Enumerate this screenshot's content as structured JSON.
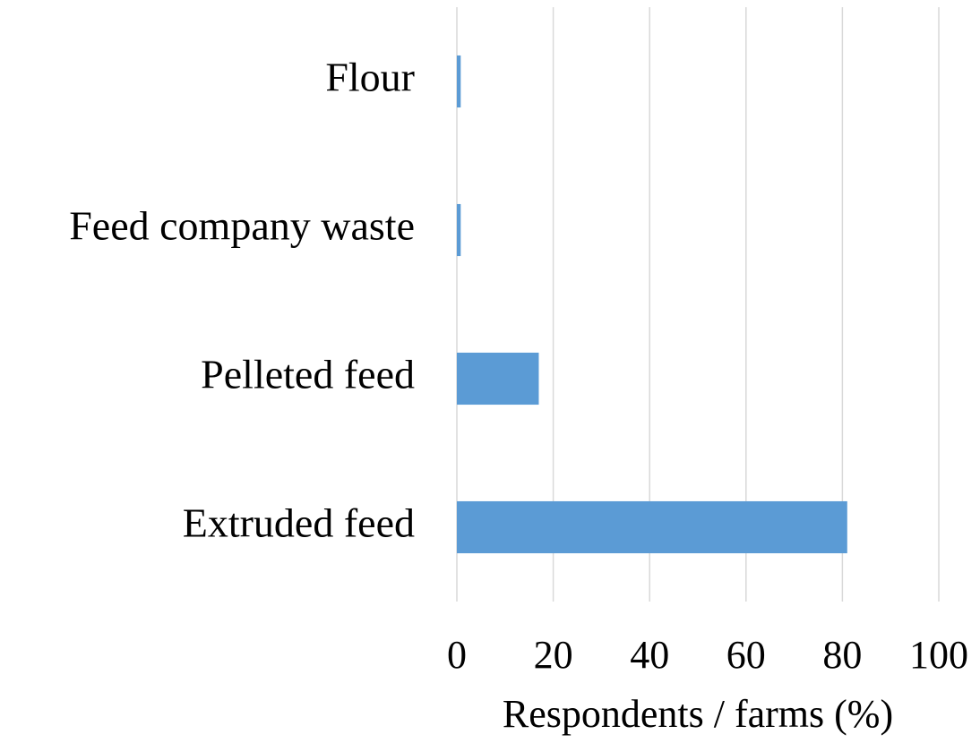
{
  "chart_data": {
    "type": "bar",
    "orientation": "horizontal",
    "categories": [
      "Flour",
      "Feed company waste",
      "Pelleted feed",
      "Extruded feed"
    ],
    "values": [
      0.8,
      0.8,
      17,
      81
    ],
    "color": "#5b9bd5",
    "x_label": "Respondents / farms (%)",
    "xlim": [
      0,
      100
    ],
    "xticks": [
      0,
      20,
      40,
      60,
      80,
      100
    ],
    "grid": true
  }
}
